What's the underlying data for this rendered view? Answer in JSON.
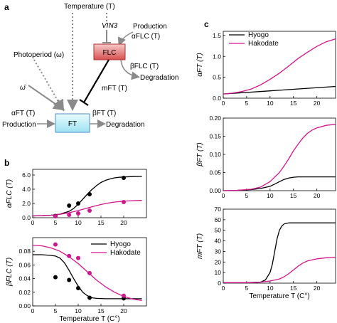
{
  "panels": {
    "a": "a",
    "b": "b",
    "c": "c"
  },
  "diagram": {
    "temperature": "Temperature (T)",
    "vin3": "VIN3",
    "production_flc": "Production",
    "alpha_flc": "αFLC (T)",
    "flc": "FLC",
    "beta_flc": "βFLC (T)",
    "degradation_flc": "Degradation",
    "photoperiod": "Photoperiod (ω)",
    "omega_bar": "ω̄",
    "m_ft": "mFT (T)",
    "alpha_ft": "αFT (T)",
    "beta_ft": "βFT (T)",
    "production_ft": "Production",
    "ft": "FT",
    "degradation_ft": "Degradation"
  },
  "colors": {
    "hyogo": "#000000",
    "hakodate": "#d4148f"
  },
  "chart_data": [
    {
      "id": "b-top",
      "type": "line",
      "ylabel": "αFLC (T)",
      "xlim": [
        0,
        25
      ],
      "ylim": [
        0,
        6.8
      ],
      "yticks": [
        "0.0",
        "2.0",
        "4.0",
        "6.0"
      ],
      "xticks": [
        "0",
        "5",
        "10",
        "15",
        "20"
      ],
      "series": [
        {
          "name": "Hyogo",
          "x": [
            0,
            2,
            4,
            6,
            8,
            9,
            10,
            11,
            12,
            13,
            14,
            15,
            16,
            17,
            18,
            19,
            20,
            22,
            24
          ],
          "y": [
            0.25,
            0.28,
            0.35,
            0.5,
            0.9,
            1.3,
            1.9,
            2.6,
            3.3,
            3.95,
            4.5,
            4.95,
            5.25,
            5.45,
            5.6,
            5.68,
            5.73,
            5.78,
            5.8
          ]
        },
        {
          "name": "Hakodate",
          "x": [
            0,
            2,
            4,
            6,
            8,
            10,
            12,
            14,
            16,
            18,
            20,
            22,
            24
          ],
          "y": [
            0.25,
            0.28,
            0.35,
            0.48,
            0.7,
            1.0,
            1.35,
            1.7,
            2.0,
            2.2,
            2.32,
            2.4,
            2.43
          ]
        }
      ],
      "points": [
        {
          "series": "Hyogo",
          "x": [
            5,
            8,
            10,
            12.5,
            20
          ],
          "y": [
            0.25,
            1.7,
            2.0,
            3.3,
            5.6
          ]
        },
        {
          "series": "Hakodate",
          "x": [
            5,
            8,
            10,
            12.5,
            20
          ],
          "y": [
            0.2,
            0.4,
            0.6,
            1.0,
            2.2
          ]
        }
      ]
    },
    {
      "id": "b-bottom",
      "type": "line",
      "ylabel": "βFLC (T)",
      "xlabel": "Temperature T (C°)",
      "xlim": [
        0,
        25
      ],
      "ylim": [
        0,
        0.1
      ],
      "yticks": [
        "0.00",
        "0.02",
        "0.04",
        "0.06",
        "0.08"
      ],
      "xticks": [
        "0",
        "5",
        "10",
        "15",
        "20"
      ],
      "series": [
        {
          "name": "Hyogo",
          "x": [
            0,
            2,
            4,
            5,
            6,
            7,
            8,
            9,
            10,
            11,
            12,
            13,
            14,
            16,
            18,
            20,
            22,
            24
          ],
          "y": [
            0.075,
            0.075,
            0.074,
            0.073,
            0.07,
            0.063,
            0.052,
            0.04,
            0.029,
            0.02,
            0.015,
            0.012,
            0.011,
            0.0105,
            0.0105,
            0.0105,
            0.0105,
            0.0105
          ]
        },
        {
          "name": "Hakodate",
          "x": [
            0,
            2,
            4,
            6,
            8,
            10,
            12,
            14,
            16,
            18,
            20,
            22,
            24
          ],
          "y": [
            0.089,
            0.088,
            0.085,
            0.08,
            0.072,
            0.062,
            0.05,
            0.038,
            0.028,
            0.02,
            0.014,
            0.01,
            0.008
          ]
        }
      ],
      "points": [
        {
          "series": "Hyogo",
          "x": [
            5,
            8,
            10,
            12.5,
            20
          ],
          "y": [
            0.042,
            0.038,
            0.026,
            0.012,
            0.011
          ]
        },
        {
          "series": "Hakodate",
          "x": [
            5,
            8,
            10,
            12.5,
            20
          ],
          "y": [
            0.09,
            0.073,
            0.07,
            0.048,
            0.015
          ]
        }
      ],
      "legend": [
        "Hyogo",
        "Hakodate"
      ],
      "legend_position": "top-right"
    },
    {
      "id": "c-top",
      "type": "line",
      "ylabel": "αFT (T)",
      "xlim": [
        0,
        24
      ],
      "ylim": [
        0,
        1.6
      ],
      "yticks": [
        "0.0",
        "0.5",
        "1.0",
        "1.5"
      ],
      "xticks": [
        "0",
        "5",
        "10",
        "15",
        "20"
      ],
      "series": [
        {
          "name": "Hyogo",
          "x": [
            0,
            24
          ],
          "y": [
            0.1,
            0.28
          ]
        },
        {
          "name": "Hakodate",
          "x": [
            0,
            2,
            4,
            6,
            8,
            10,
            12,
            14,
            16,
            18,
            20,
            22,
            24
          ],
          "y": [
            0.1,
            0.12,
            0.16,
            0.22,
            0.32,
            0.45,
            0.6,
            0.77,
            0.95,
            1.1,
            1.24,
            1.35,
            1.42
          ]
        }
      ],
      "legend": [
        "Hyogo",
        "Hakodate"
      ],
      "legend_position": "top-left"
    },
    {
      "id": "c-middle",
      "type": "line",
      "ylabel": "βFT (T)",
      "xlim": [
        0,
        24
      ],
      "ylim": [
        0,
        0.2
      ],
      "yticks": [
        "0.00",
        "0.05",
        "0.10",
        "0.15",
        "0.20"
      ],
      "xticks": [
        "0",
        "5",
        "10",
        "15",
        "20"
      ],
      "series": [
        {
          "name": "Hyogo",
          "x": [
            0,
            3,
            6,
            8,
            10,
            11,
            12,
            13,
            14,
            15,
            16,
            18,
            20,
            22,
            24
          ],
          "y": [
            0,
            0.001,
            0.003,
            0.006,
            0.012,
            0.018,
            0.025,
            0.031,
            0.035,
            0.037,
            0.038,
            0.038,
            0.038,
            0.038,
            0.038
          ]
        },
        {
          "name": "Hakodate",
          "x": [
            0,
            3,
            6,
            8,
            10,
            12,
            13,
            14,
            15,
            16,
            17,
            18,
            19,
            20,
            22,
            24
          ],
          "y": [
            0,
            0.001,
            0.004,
            0.01,
            0.025,
            0.05,
            0.068,
            0.088,
            0.11,
            0.128,
            0.145,
            0.158,
            0.167,
            0.173,
            0.18,
            0.183
          ]
        }
      ]
    },
    {
      "id": "c-bottom",
      "type": "line",
      "ylabel": "mFT (T)",
      "xlabel": "Temperature T (C°)",
      "xlim": [
        0,
        24
      ],
      "ylim": [
        0,
        70
      ],
      "yticks": [
        "0",
        "10",
        "20",
        "30",
        "40",
        "50",
        "60",
        "70"
      ],
      "xticks": [
        "0",
        "5",
        "10",
        "15",
        "20"
      ],
      "series": [
        {
          "name": "Hyogo",
          "x": [
            0,
            5,
            8,
            9,
            10,
            10.5,
            11,
            11.5,
            12,
            12.5,
            13,
            14,
            16,
            18,
            20,
            24
          ],
          "y": [
            0.5,
            0.5,
            1,
            3,
            10,
            18,
            30,
            42,
            50,
            54,
            56,
            57,
            57,
            57,
            57,
            57
          ]
        },
        {
          "name": "Hakodate",
          "x": [
            0,
            6,
            8,
            10,
            12,
            13,
            14,
            15,
            16,
            17,
            18,
            20,
            22,
            24
          ],
          "y": [
            0.5,
            0.5,
            1,
            2,
            4,
            6,
            9,
            12.5,
            16,
            19,
            21,
            23,
            24,
            24.5
          ]
        }
      ]
    }
  ]
}
